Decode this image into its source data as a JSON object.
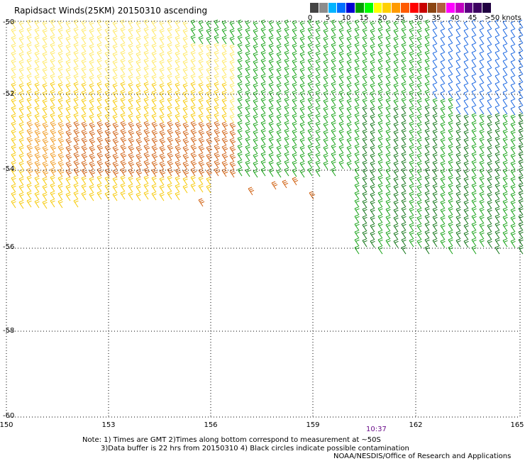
{
  "title": "Rapidsact Winds(25KM)  20150310  ascending",
  "legend": {
    "colors": [
      "#444444",
      "#8c8c8c",
      "#00b4ff",
      "#0070ff",
      "#0000d2",
      "#00a000",
      "#00ff00",
      "#ffff00",
      "#ffd000",
      "#ff9a00",
      "#ff5a00",
      "#ff0000",
      "#c80000",
      "#8b4513",
      "#b06040",
      "#ff00ff",
      "#c000c0",
      "#5a0080",
      "#3c0060",
      "#200040"
    ],
    "labels": [
      "0",
      "5",
      "10",
      "15",
      "20",
      "25",
      "30",
      "35",
      "40",
      "45",
      ">50 knots"
    ]
  },
  "axes": {
    "lat_labels": [
      "-50",
      "-52",
      "-54",
      "-56",
      "-58",
      "-60"
    ],
    "lon_labels": [
      "150",
      "153",
      "156",
      "159",
      "162",
      "165"
    ]
  },
  "time_marker": "10:37",
  "notes": {
    "line1": "Note: 1) Times are GMT 2)Times along bottom correspond to measurement at ~50S",
    "line2": "3)Data buffer is 22 hrs from 20150310 4) Black circles indicate possible contamination",
    "credit": "NOAA/NESDIS/Office of Research and Applications"
  },
  "wind_colors": {
    "light": "#ffe860",
    "yellow": "#f6c800",
    "orange": "#f09a20",
    "dark_orange": "#d06010",
    "green": "#10a010",
    "dark_green": "#0a7010",
    "blue": "#1060e0",
    "dark_blue": "#0010a0"
  },
  "chart_data": {
    "type": "wind_barb_map",
    "lat_range": [
      -60,
      -50
    ],
    "lon_range": [
      150,
      165
    ],
    "grid": true,
    "regions_note": "westerly barbs; 25-35 kt west (yellow/orange), 15-20 kt east (green), 10 kt far NE (blue)"
  }
}
